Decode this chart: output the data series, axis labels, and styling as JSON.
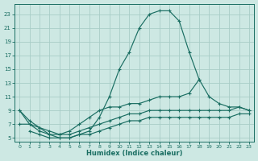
{
  "xlabel": "Humidex (Indice chaleur)",
  "background_color": "#cde8e3",
  "line_color": "#1a6e62",
  "grid_color": "#a8cdc7",
  "xlim": [
    -0.5,
    23.5
  ],
  "ylim": [
    4.5,
    24.5
  ],
  "xticks": [
    0,
    1,
    2,
    3,
    4,
    5,
    6,
    7,
    8,
    9,
    10,
    11,
    12,
    13,
    14,
    15,
    16,
    17,
    18,
    19,
    20,
    21,
    22,
    23
  ],
  "yticks": [
    5,
    7,
    9,
    11,
    13,
    15,
    17,
    19,
    21,
    23
  ],
  "line1_x": [
    0,
    1,
    2,
    3,
    4,
    5,
    6,
    7,
    8,
    9,
    10,
    11,
    12,
    13,
    14,
    15,
    16,
    17,
    18
  ],
  "line1_y": [
    9,
    7,
    6,
    5.5,
    5,
    5,
    5.5,
    6,
    8,
    11,
    15,
    17.5,
    21,
    23,
    23.5,
    23.5,
    22,
    17.5,
    13.5
  ],
  "line2_x": [
    0,
    1,
    2,
    3,
    4,
    5,
    6,
    7,
    8,
    9,
    10,
    11,
    12,
    13,
    14,
    15,
    16,
    17,
    18,
    19,
    20,
    21,
    22,
    23
  ],
  "line2_y": [
    9,
    7.5,
    6.5,
    5.5,
    5.5,
    6,
    7,
    8,
    9,
    9.5,
    9.5,
    10,
    10,
    10.5,
    11,
    11,
    11,
    11.5,
    13.5,
    11,
    10,
    9.5,
    9.5,
    9
  ],
  "line3_x": [
    0,
    1,
    2,
    3,
    4,
    5,
    6,
    7,
    8,
    9,
    10,
    11,
    12,
    13,
    14,
    15,
    16,
    17,
    18,
    19,
    20,
    21,
    22,
    23
  ],
  "line3_y": [
    7,
    7,
    6.5,
    6,
    5.5,
    5.5,
    6,
    6.5,
    7,
    7.5,
    8,
    8.5,
    8.5,
    9,
    9,
    9,
    9,
    9,
    9,
    9,
    9,
    9,
    9.5,
    9
  ],
  "line4_x": [
    1,
    2,
    3,
    4,
    5,
    6,
    7,
    8,
    9,
    10,
    11,
    12,
    13,
    14,
    15,
    16,
    17,
    18,
    19,
    20,
    21,
    22,
    23
  ],
  "line4_y": [
    6,
    5.5,
    5,
    5,
    5,
    5.5,
    5.5,
    6,
    6.5,
    7,
    7.5,
    7.5,
    8,
    8,
    8,
    8,
    8,
    8,
    8,
    8,
    8,
    8.5,
    8.5
  ]
}
